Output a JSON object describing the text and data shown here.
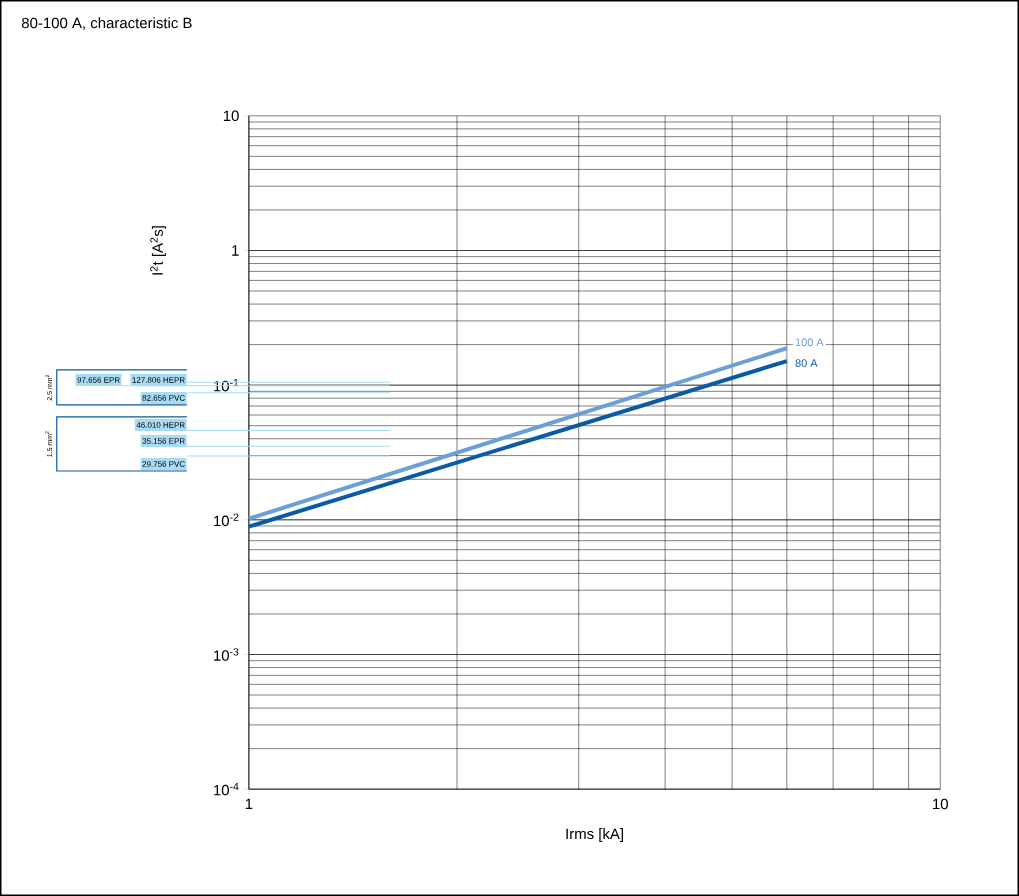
{
  "chart_data": {
    "type": "line",
    "title": "80-100 A, characteristic B",
    "xlabel": "Irms [kA]",
    "ylabel": "I$^{2}$t [A$^{2}$s]",
    "x": [
      1,
      6
    ],
    "series": [
      {
        "name": "100 A",
        "color": "#6a9fd8",
        "values": [
          0.0102,
          0.188
        ]
      },
      {
        "name": "80 A",
        "color": "#0a5aa8",
        "values": [
          0.0089,
          0.151
        ]
      }
    ],
    "xlim": [
      1,
      10
    ],
    "ylim": [
      0.0001,
      10
    ],
    "xticks": [
      1,
      10
    ],
    "yticks": [
      {
        "value": 0.0001,
        "label": "10$^{-4}$"
      },
      {
        "value": 0.001,
        "label": "10$^{-3}$"
      },
      {
        "value": 0.01,
        "label": "10$^{-2}$"
      },
      {
        "value": 0.1,
        "label": "10$^{-1}$"
      },
      {
        "value": 1,
        "label": "1"
      },
      {
        "value": 10,
        "label": "10"
      }
    ],
    "log": "xy",
    "grid": true,
    "legend": false,
    "marker": "none",
    "line_style": "solid",
    "ref_lines": [
      {
        "axis": "y",
        "value": 0.105,
        "label": "127.806 HEPR",
        "color": "#a8dcf5"
      },
      {
        "axis": "y",
        "value": 0.099,
        "label": "97.656 EPR",
        "color": "#a8dcf5"
      },
      {
        "axis": "y",
        "value": 0.088,
        "label": "82.656 PVC",
        "color": "#a8dcf5"
      },
      {
        "axis": "y",
        "value": 0.046,
        "label": "46.010 HEPR",
        "color": "#a8dcf5"
      },
      {
        "axis": "y",
        "value": 0.0352,
        "label": "35.156 EPR",
        "color": "#a8dcf5"
      },
      {
        "axis": "y",
        "value": 0.0298,
        "label": "29.756 PVC",
        "color": "#a8dcf5"
      }
    ],
    "annotations": [
      "2.5 mm$^{2}$",
      "1.5 mm$^{2}$"
    ]
  }
}
